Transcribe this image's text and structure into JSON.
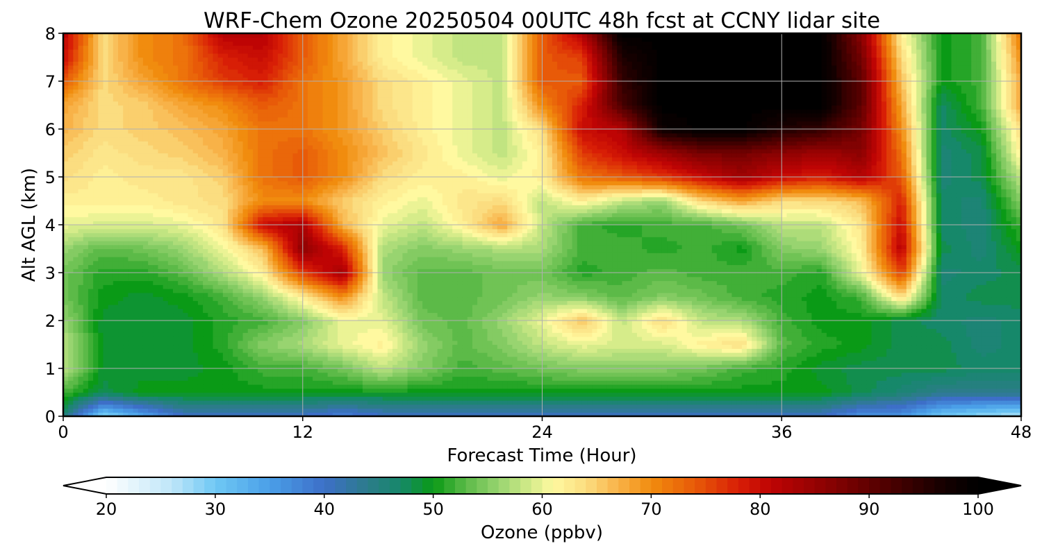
{
  "chart_data": {
    "type": "heatmap",
    "title": "WRF-Chem Ozone  20250504 00UTC 48h fcst at CCNY lidar site",
    "xlabel": "Forecast Time (Hour)",
    "ylabel": "Alt AGL (km)",
    "xlim": [
      0,
      48
    ],
    "ylim": [
      0,
      8
    ],
    "x_ticks": [
      0,
      12,
      24,
      36,
      48
    ],
    "x_tick_labels": [
      "0",
      "12",
      "24",
      "36",
      "48"
    ],
    "y_ticks": [
      0,
      1,
      2,
      3,
      4,
      5,
      6,
      7,
      8
    ],
    "y_tick_labels": [
      "0",
      "1",
      "2",
      "3",
      "4",
      "5",
      "6",
      "7",
      "8"
    ],
    "grid": true,
    "x": [
      0,
      2,
      4,
      6,
      8,
      10,
      12,
      14,
      16,
      18,
      20,
      22,
      24,
      26,
      28,
      30,
      32,
      34,
      36,
      38,
      40,
      42,
      44,
      46,
      48
    ],
    "y": [
      0,
      0.5,
      1,
      1.5,
      2,
      2.5,
      3,
      3.5,
      4,
      4.5,
      5,
      5.5,
      6,
      6.5,
      7,
      7.5,
      8
    ],
    "z": [
      [
        46,
        28,
        34,
        40,
        40,
        40,
        40,
        38,
        40,
        40,
        40,
        40,
        40,
        40,
        40,
        40,
        40,
        40,
        40,
        40,
        36,
        36,
        30,
        28,
        26
      ],
      [
        52,
        48,
        50,
        50,
        50,
        50,
        50,
        50,
        50,
        50,
        50,
        50,
        50,
        50,
        50,
        50,
        50,
        50,
        50,
        50,
        48,
        46,
        44,
        44,
        44
      ],
      [
        58,
        49,
        49,
        49,
        50,
        52,
        52,
        54,
        58,
        55,
        52,
        53,
        54,
        55,
        55,
        55,
        54,
        52,
        51,
        49,
        48,
        48,
        48,
        47,
        47
      ],
      [
        58,
        49,
        49,
        49,
        51,
        55,
        57,
        60,
        62,
        56,
        53,
        55,
        58,
        60,
        59,
        59,
        62,
        64,
        53,
        51,
        50,
        48,
        48,
        46,
        47
      ],
      [
        56,
        49,
        49,
        49,
        51,
        52,
        55,
        60,
        60,
        54,
        53,
        56,
        60,
        66,
        58,
        64,
        58,
        57,
        52,
        50,
        50,
        48,
        47,
        46,
        47
      ],
      [
        54,
        50,
        49,
        50,
        52,
        56,
        62,
        70,
        58,
        53,
        53,
        54,
        56,
        55,
        53,
        55,
        54,
        52,
        51,
        50,
        52,
        64,
        47,
        48,
        48
      ],
      [
        54,
        51,
        51,
        53,
        57,
        62,
        76,
        84,
        56,
        53,
        53,
        54,
        54,
        51,
        52,
        53,
        52,
        52,
        52,
        51,
        60,
        76,
        46,
        47,
        48
      ],
      [
        56,
        53,
        54,
        56,
        60,
        66,
        86,
        78,
        57,
        55,
        56,
        57,
        57,
        52,
        52,
        51,
        52,
        50,
        55,
        56,
        62,
        82,
        48,
        46,
        50
      ],
      [
        60,
        59,
        59,
        60,
        63,
        80,
        83,
        67,
        60,
        58,
        62,
        68,
        58,
        52,
        51,
        52,
        52,
        54,
        58,
        58,
        63,
        80,
        47,
        46,
        52
      ],
      [
        62,
        62,
        62,
        63,
        64,
        70,
        70,
        65,
        62,
        60,
        63,
        64,
        58,
        62,
        58,
        56,
        64,
        68,
        64,
        64,
        66,
        78,
        47,
        46,
        55
      ],
      [
        64,
        62,
        63,
        63,
        65,
        72,
        74,
        70,
        64,
        62,
        62,
        60,
        62,
        72,
        74,
        76,
        80,
        84,
        80,
        78,
        82,
        74,
        46,
        48,
        58
      ],
      [
        65,
        63,
        64,
        65,
        67,
        72,
        74,
        70,
        66,
        63,
        60,
        58,
        62,
        76,
        80,
        84,
        88,
        88,
        86,
        84,
        86,
        72,
        46,
        48,
        62
      ],
      [
        67,
        64,
        65,
        66,
        68,
        72,
        72,
        69,
        65,
        62,
        60,
        58,
        64,
        80,
        82,
        98,
        100,
        100,
        96,
        94,
        88,
        70,
        47,
        50,
        64
      ],
      [
        68,
        64,
        65,
        68,
        70,
        74,
        72,
        69,
        64,
        62,
        60,
        58,
        70,
        78,
        92,
        100,
        100,
        100,
        100,
        100,
        90,
        68,
        47,
        52,
        68
      ],
      [
        74,
        64,
        68,
        72,
        76,
        78,
        72,
        69,
        64,
        62,
        60,
        58,
        74,
        74,
        94,
        100,
        100,
        100,
        100,
        100,
        90,
        66,
        50,
        52,
        68
      ],
      [
        80,
        64,
        70,
        72,
        78,
        80,
        74,
        68,
        62,
        60,
        58,
        58,
        74,
        76,
        96,
        100,
        100,
        100,
        100,
        100,
        88,
        64,
        50,
        52,
        70
      ],
      [
        82,
        64,
        70,
        72,
        82,
        82,
        74,
        68,
        62,
        60,
        58,
        58,
        74,
        82,
        100,
        100,
        100,
        100,
        100,
        100,
        86,
        62,
        50,
        52,
        72
      ]
    ],
    "colorbar": {
      "label": "Ozone  (ppbv)",
      "min": 20,
      "max": 100,
      "extend": "both",
      "ticks": [
        20,
        30,
        40,
        50,
        60,
        70,
        80,
        90,
        100
      ],
      "tick_labels": [
        "20",
        "30",
        "40",
        "50",
        "60",
        "70",
        "80",
        "90",
        "100"
      ],
      "colormap_stops": [
        [
          20,
          "#ffffff"
        ],
        [
          26,
          "#bfe6f8"
        ],
        [
          30,
          "#6fc8f4"
        ],
        [
          35,
          "#4a9fe8"
        ],
        [
          40,
          "#3d6fc8"
        ],
        [
          44,
          "#2c7c8a"
        ],
        [
          47,
          "#16886a"
        ],
        [
          50,
          "#0a9a16"
        ],
        [
          53,
          "#5cba48"
        ],
        [
          56,
          "#98d470"
        ],
        [
          59,
          "#d6ec8a"
        ],
        [
          61,
          "#fff9a0"
        ],
        [
          64,
          "#fbdd80"
        ],
        [
          67,
          "#f8b248"
        ],
        [
          70,
          "#f18c0e"
        ],
        [
          74,
          "#e85a08"
        ],
        [
          78,
          "#d81e06"
        ],
        [
          81,
          "#be0404"
        ],
        [
          86,
          "#8c0202"
        ],
        [
          92,
          "#4a0000"
        ],
        [
          97,
          "#140000"
        ],
        [
          100,
          "#000000"
        ]
      ]
    }
  }
}
